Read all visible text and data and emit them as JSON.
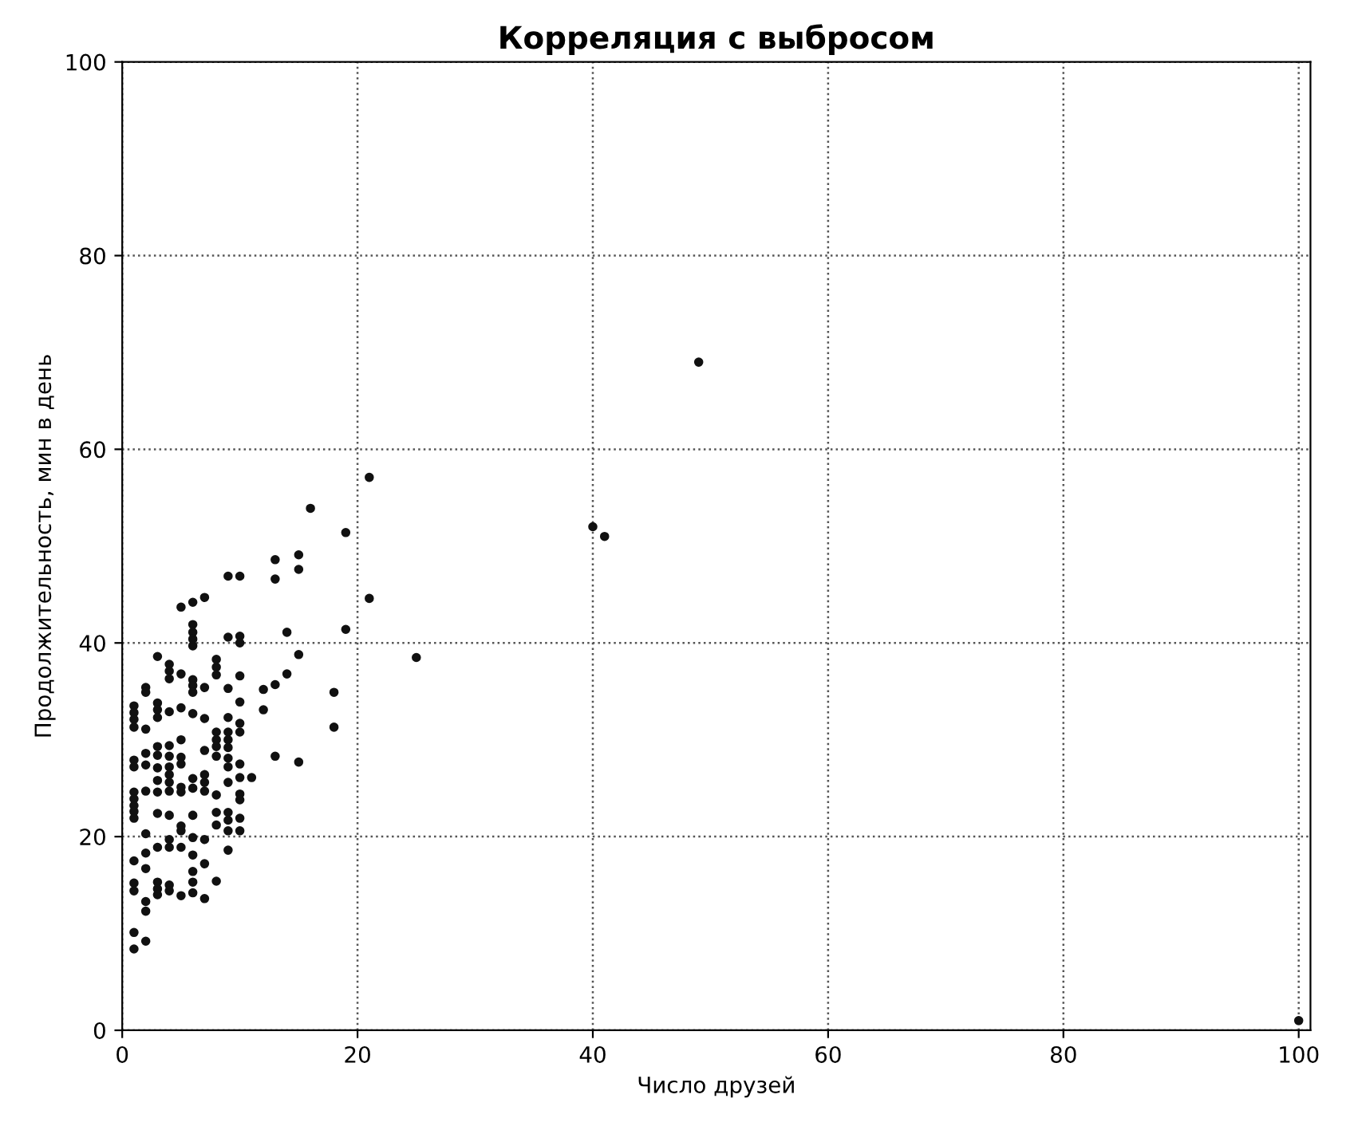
{
  "chart_data": {
    "type": "scatter",
    "title": "Корреляция с выбросом",
    "xlabel": "Число друзей",
    "ylabel": "Продолжительность, мин в день",
    "xlim": [
      0,
      101
    ],
    "ylim": [
      0,
      100
    ],
    "xticks": [
      0,
      20,
      40,
      60,
      80,
      100
    ],
    "yticks": [
      0,
      20,
      40,
      60,
      80,
      100
    ],
    "grid": true,
    "marker": "circle",
    "series": [
      {
        "color": "#111111",
        "x": [
          1,
          1,
          1,
          1,
          1,
          1,
          1,
          1,
          1,
          1,
          1,
          1,
          1,
          1,
          1,
          1,
          2,
          2,
          2,
          2,
          2,
          2,
          2,
          2,
          2,
          2,
          2,
          2,
          3,
          3,
          3,
          3,
          3,
          3,
          3,
          3,
          3,
          3,
          3,
          3,
          3,
          3,
          4,
          4,
          4,
          4,
          4,
          4,
          4,
          4,
          4,
          4,
          4,
          4,
          4,
          4,
          4,
          5,
          5,
          5,
          5,
          5,
          5,
          5,
          5,
          5,
          5,
          5,
          5,
          6,
          6,
          6,
          6,
          6,
          6,
          6,
          6,
          6,
          6,
          6,
          6,
          6,
          6,
          6,
          6,
          6,
          7,
          7,
          7,
          7,
          7,
          7,
          7,
          7,
          7,
          7,
          8,
          8,
          8,
          8,
          8,
          8,
          8,
          8,
          8,
          8,
          8,
          9,
          9,
          9,
          9,
          9,
          9,
          9,
          9,
          9,
          9,
          9,
          9,
          9,
          9,
          10,
          10,
          10,
          10,
          10,
          10,
          10,
          10,
          10,
          10,
          10,
          10,
          10,
          11,
          21,
          16,
          19,
          13,
          15,
          15,
          13,
          21,
          14,
          19,
          15,
          25,
          14,
          13,
          12,
          12,
          18,
          18,
          13,
          15,
          40,
          41,
          49,
          100
        ],
        "values": [
          33.5,
          32.8,
          32.1,
          31.3,
          27.9,
          27.2,
          24.6,
          23.9,
          23.2,
          22.6,
          21.9,
          17.5,
          15.2,
          14.4,
          10.1,
          8.4,
          35.4,
          34.9,
          31.1,
          28.6,
          27.4,
          24.7,
          20.3,
          18.3,
          16.7,
          13.3,
          12.3,
          9.2,
          38.6,
          33.8,
          33.1,
          32.3,
          29.3,
          28.4,
          27.1,
          25.8,
          24.6,
          22.4,
          18.9,
          15.3,
          14.6,
          14,
          37.8,
          37.1,
          36.3,
          32.9,
          29.4,
          28.3,
          27.2,
          26.4,
          25.6,
          24.7,
          22.2,
          19.7,
          18.9,
          15,
          14.4,
          43.7,
          36.8,
          33.3,
          30,
          28.2,
          27.5,
          25.1,
          24.6,
          21.1,
          20.6,
          18.9,
          13.9,
          44.2,
          41.9,
          41.1,
          40.4,
          39.7,
          36.2,
          35.6,
          34.9,
          32.7,
          26,
          25,
          22.2,
          19.9,
          18.1,
          16.4,
          15.3,
          14.2,
          44.7,
          35.4,
          32.2,
          28.9,
          26.4,
          25.6,
          24.7,
          19.7,
          17.2,
          13.6,
          38.3,
          37.5,
          36.7,
          30.8,
          30,
          29.3,
          28.3,
          24.3,
          22.5,
          21.2,
          15.4,
          46.9,
          40.6,
          35.3,
          32.3,
          30.8,
          30,
          29.2,
          28.1,
          27.2,
          25.6,
          22.5,
          21.7,
          20.6,
          18.6,
          46.9,
          40.7,
          40,
          36.6,
          33.9,
          31.7,
          30.8,
          27.5,
          26.1,
          24.4,
          23.8,
          21.9,
          20.6,
          26.1,
          57.1,
          53.9,
          51.4,
          48.6,
          49.1,
          47.6,
          46.6,
          44.6,
          41.1,
          41.4,
          38.8,
          38.5,
          36.8,
          35.7,
          35.2,
          33.1,
          34.9,
          31.3,
          28.3,
          27.7,
          52,
          51,
          69,
          1
        ]
      }
    ]
  }
}
